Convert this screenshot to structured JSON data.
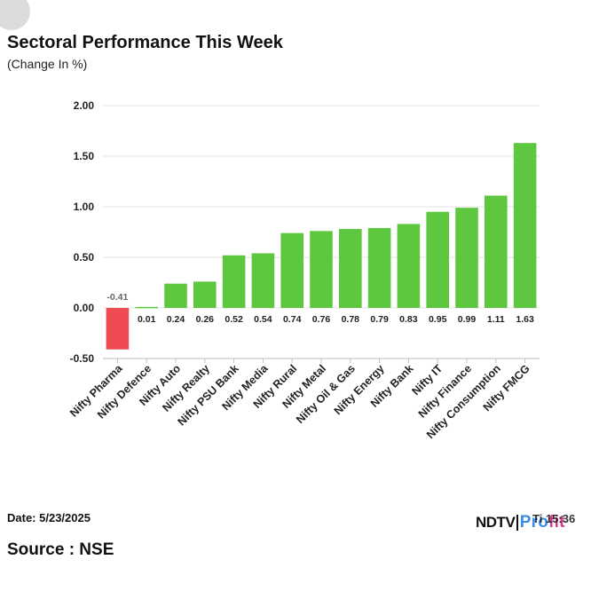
{
  "chart_data": {
    "type": "bar",
    "title": "Sectoral Performance This Week",
    "subtitle": "(Change In %)",
    "categories": [
      "Nifty Pharma",
      "Nifty Defence",
      "Nifty Auto",
      "Nifty Realty",
      "Nifty PSU Bank",
      "Nifty Media",
      "Nifty Rural",
      "Nifty Metal",
      "Nifty Oil & Gas",
      "Nifty Energy",
      "Nifty Bank",
      "Nifty IT",
      "Nifty Finance",
      "Nifty Consumption",
      "Nifty FMCG"
    ],
    "values": [
      -0.41,
      0.01,
      0.24,
      0.26,
      0.52,
      0.54,
      0.74,
      0.76,
      0.78,
      0.79,
      0.83,
      0.95,
      0.99,
      1.11,
      1.63
    ],
    "value_labels": [
      "-0.41",
      "0.01",
      "0.24",
      "0.26",
      "0.52",
      "0.54",
      "0.74",
      "0.76",
      "0.78",
      "0.79",
      "0.83",
      "0.95",
      "0.99",
      "1.11",
      "1.63"
    ],
    "yticks": [
      2.0,
      1.5,
      1.0,
      0.5,
      0.0,
      -0.5
    ],
    "ytick_labels": [
      "2.00",
      "1.50",
      "1.00",
      "0.50",
      "0.00",
      "-0.50"
    ],
    "ylim": [
      -0.5,
      2.0
    ],
    "xlabel": "",
    "ylabel": "",
    "grid": true,
    "colors": {
      "positive": "#5cc73f",
      "negative": "#f04a52",
      "grid": "#e3e3e3",
      "axis": "#bdbdbd",
      "label": "#222222",
      "negative_label": "#666666"
    }
  },
  "footer": {
    "date": "Date: 5/23/2025",
    "source": "Source : NSE",
    "time_overlay": "Ti  15:36"
  },
  "brand": {
    "name_part1": "NDTV",
    "name_part2a": "Pro",
    "name_part2b": "fit",
    "colors": {
      "ndtv": "#111111",
      "profit_a": "#3a8ee6",
      "profit_b": "#d43c8d"
    }
  }
}
